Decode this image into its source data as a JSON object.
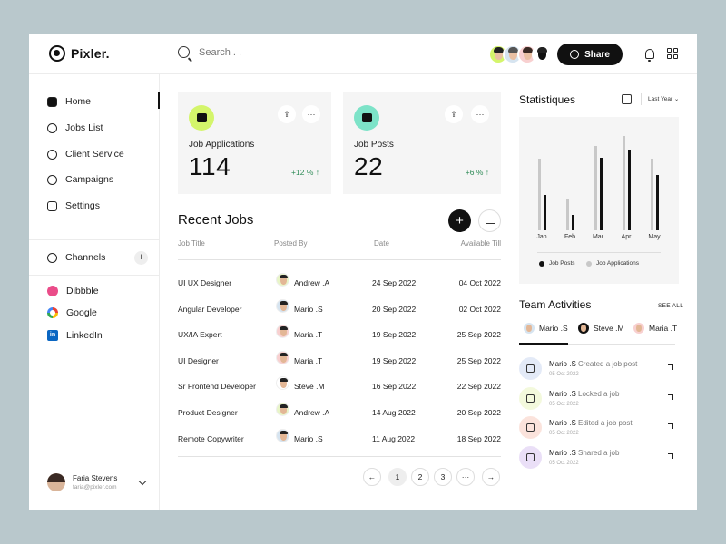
{
  "header": {
    "logo": "Pixler.",
    "search_placeholder": "Search . .",
    "share_label": "Share"
  },
  "sidebar": {
    "nav": [
      {
        "label": "Home",
        "icon": "home-icon"
      },
      {
        "label": "Jobs List",
        "icon": "briefcase-icon"
      },
      {
        "label": "Client Service",
        "icon": "lifebuoy-icon"
      },
      {
        "label": "Campaigns",
        "icon": "broadcast-icon"
      },
      {
        "label": "Settings",
        "icon": "sliders-icon"
      }
    ],
    "channels_label": "Channels",
    "add_label": "+",
    "channels": [
      {
        "label": "Dibbble",
        "icon": "dribbble-icon",
        "color": "#ea4c89"
      },
      {
        "label": "Google",
        "icon": "google-icon"
      },
      {
        "label": "LinkedIn",
        "icon": "linkedin-icon",
        "color": "#0a66c2",
        "glyph": "in"
      }
    ],
    "profile": {
      "name": "Faria Stevens",
      "email": "faria@pixler.com"
    }
  },
  "cards": [
    {
      "label": "Job Applications",
      "value": "114",
      "change": "+12 % ↑",
      "color": "#d4f56b"
    },
    {
      "label": "Job Posts",
      "value": "22",
      "change": "+6 % ↑",
      "color": "#7de3c8"
    }
  ],
  "card_more": "···",
  "recent_jobs": {
    "title": "Recent Jobs",
    "add": "+",
    "columns": [
      "Job Title",
      "Posted By",
      "Date",
      "Available Till"
    ],
    "rows": [
      {
        "title": "UI UX Designer",
        "by": "Andrew .A",
        "date": "24 Sep 2022",
        "till": "04 Oct 2022",
        "bg": "#e8f5c8"
      },
      {
        "title": "Angular Developer",
        "by": "Mario .S",
        "date": "20 Sep 2022",
        "till": "02 Oct 2022",
        "bg": "#d6e4f0"
      },
      {
        "title": "UX/IA Expert",
        "by": "Maria .T",
        "date": "19 Sep 2022",
        "till": "25 Sep 2022",
        "bg": "#f8d0d0"
      },
      {
        "title": "UI Designer",
        "by": "Maria .T",
        "date": "19 Sep 2022",
        "till": "25 Sep 2022",
        "bg": "#f8d0d0"
      },
      {
        "title": "Sr Frontend Developer",
        "by": "Steve .M",
        "date": "16 Sep 2022",
        "till": "22 Sep 2022",
        "bg": "#ffffff"
      },
      {
        "title": "Product Designer",
        "by": "Andrew .A",
        "date": "14 Aug 2022",
        "till": "20 Sep 2022",
        "bg": "#e8f5c8"
      },
      {
        "title": "Remote Copywriter",
        "by": "Mario .S",
        "date": "11 Aug 2022",
        "till": "18 Sep 2022",
        "bg": "#d6e4f0"
      }
    ],
    "pagination": [
      "←",
      "1",
      "2",
      "3",
      "···",
      "→"
    ]
  },
  "statistics": {
    "title": "Statistiques",
    "period": "Last Year ⌄"
  },
  "chart_data": {
    "type": "bar",
    "categories": [
      "Jan",
      "Feb",
      "Mar",
      "Apr",
      "May"
    ],
    "series": [
      {
        "name": "Job Posts",
        "values": [
          50,
          22,
          102,
          113,
          78
        ],
        "color": "#111111"
      },
      {
        "name": "Job Applications",
        "values": [
          100,
          44,
          118,
          132,
          100
        ],
        "color": "#c8c8c8"
      }
    ],
    "ylim": [
      0,
      140
    ],
    "grid": false,
    "legend": "bottom"
  },
  "team": {
    "title": "Team Activities",
    "see_all": "SEE ALL",
    "members": [
      {
        "name": "Mario .S",
        "bg": "#d6e4f0"
      },
      {
        "name": "Steve .M",
        "bg": "#ffffff"
      },
      {
        "name": "Maria .T",
        "bg": "#f8d0d0"
      }
    ],
    "activities": [
      {
        "who": "Mario .S",
        "what": " Created a job post",
        "date": "05 Oct 2022",
        "bg": "#e3eaf7"
      },
      {
        "who": "Mario .S",
        "what": " Locked a job",
        "date": "05 Oct 2022",
        "bg": "#f3f9dc"
      },
      {
        "who": "Mario .S",
        "what": " Edited a job post",
        "date": "05 Oct 2022",
        "bg": "#fbe3dc"
      },
      {
        "who": "Mario .S",
        "what": " Shared a job",
        "date": "05 Oct 2022",
        "bg": "#eadff7"
      }
    ]
  }
}
